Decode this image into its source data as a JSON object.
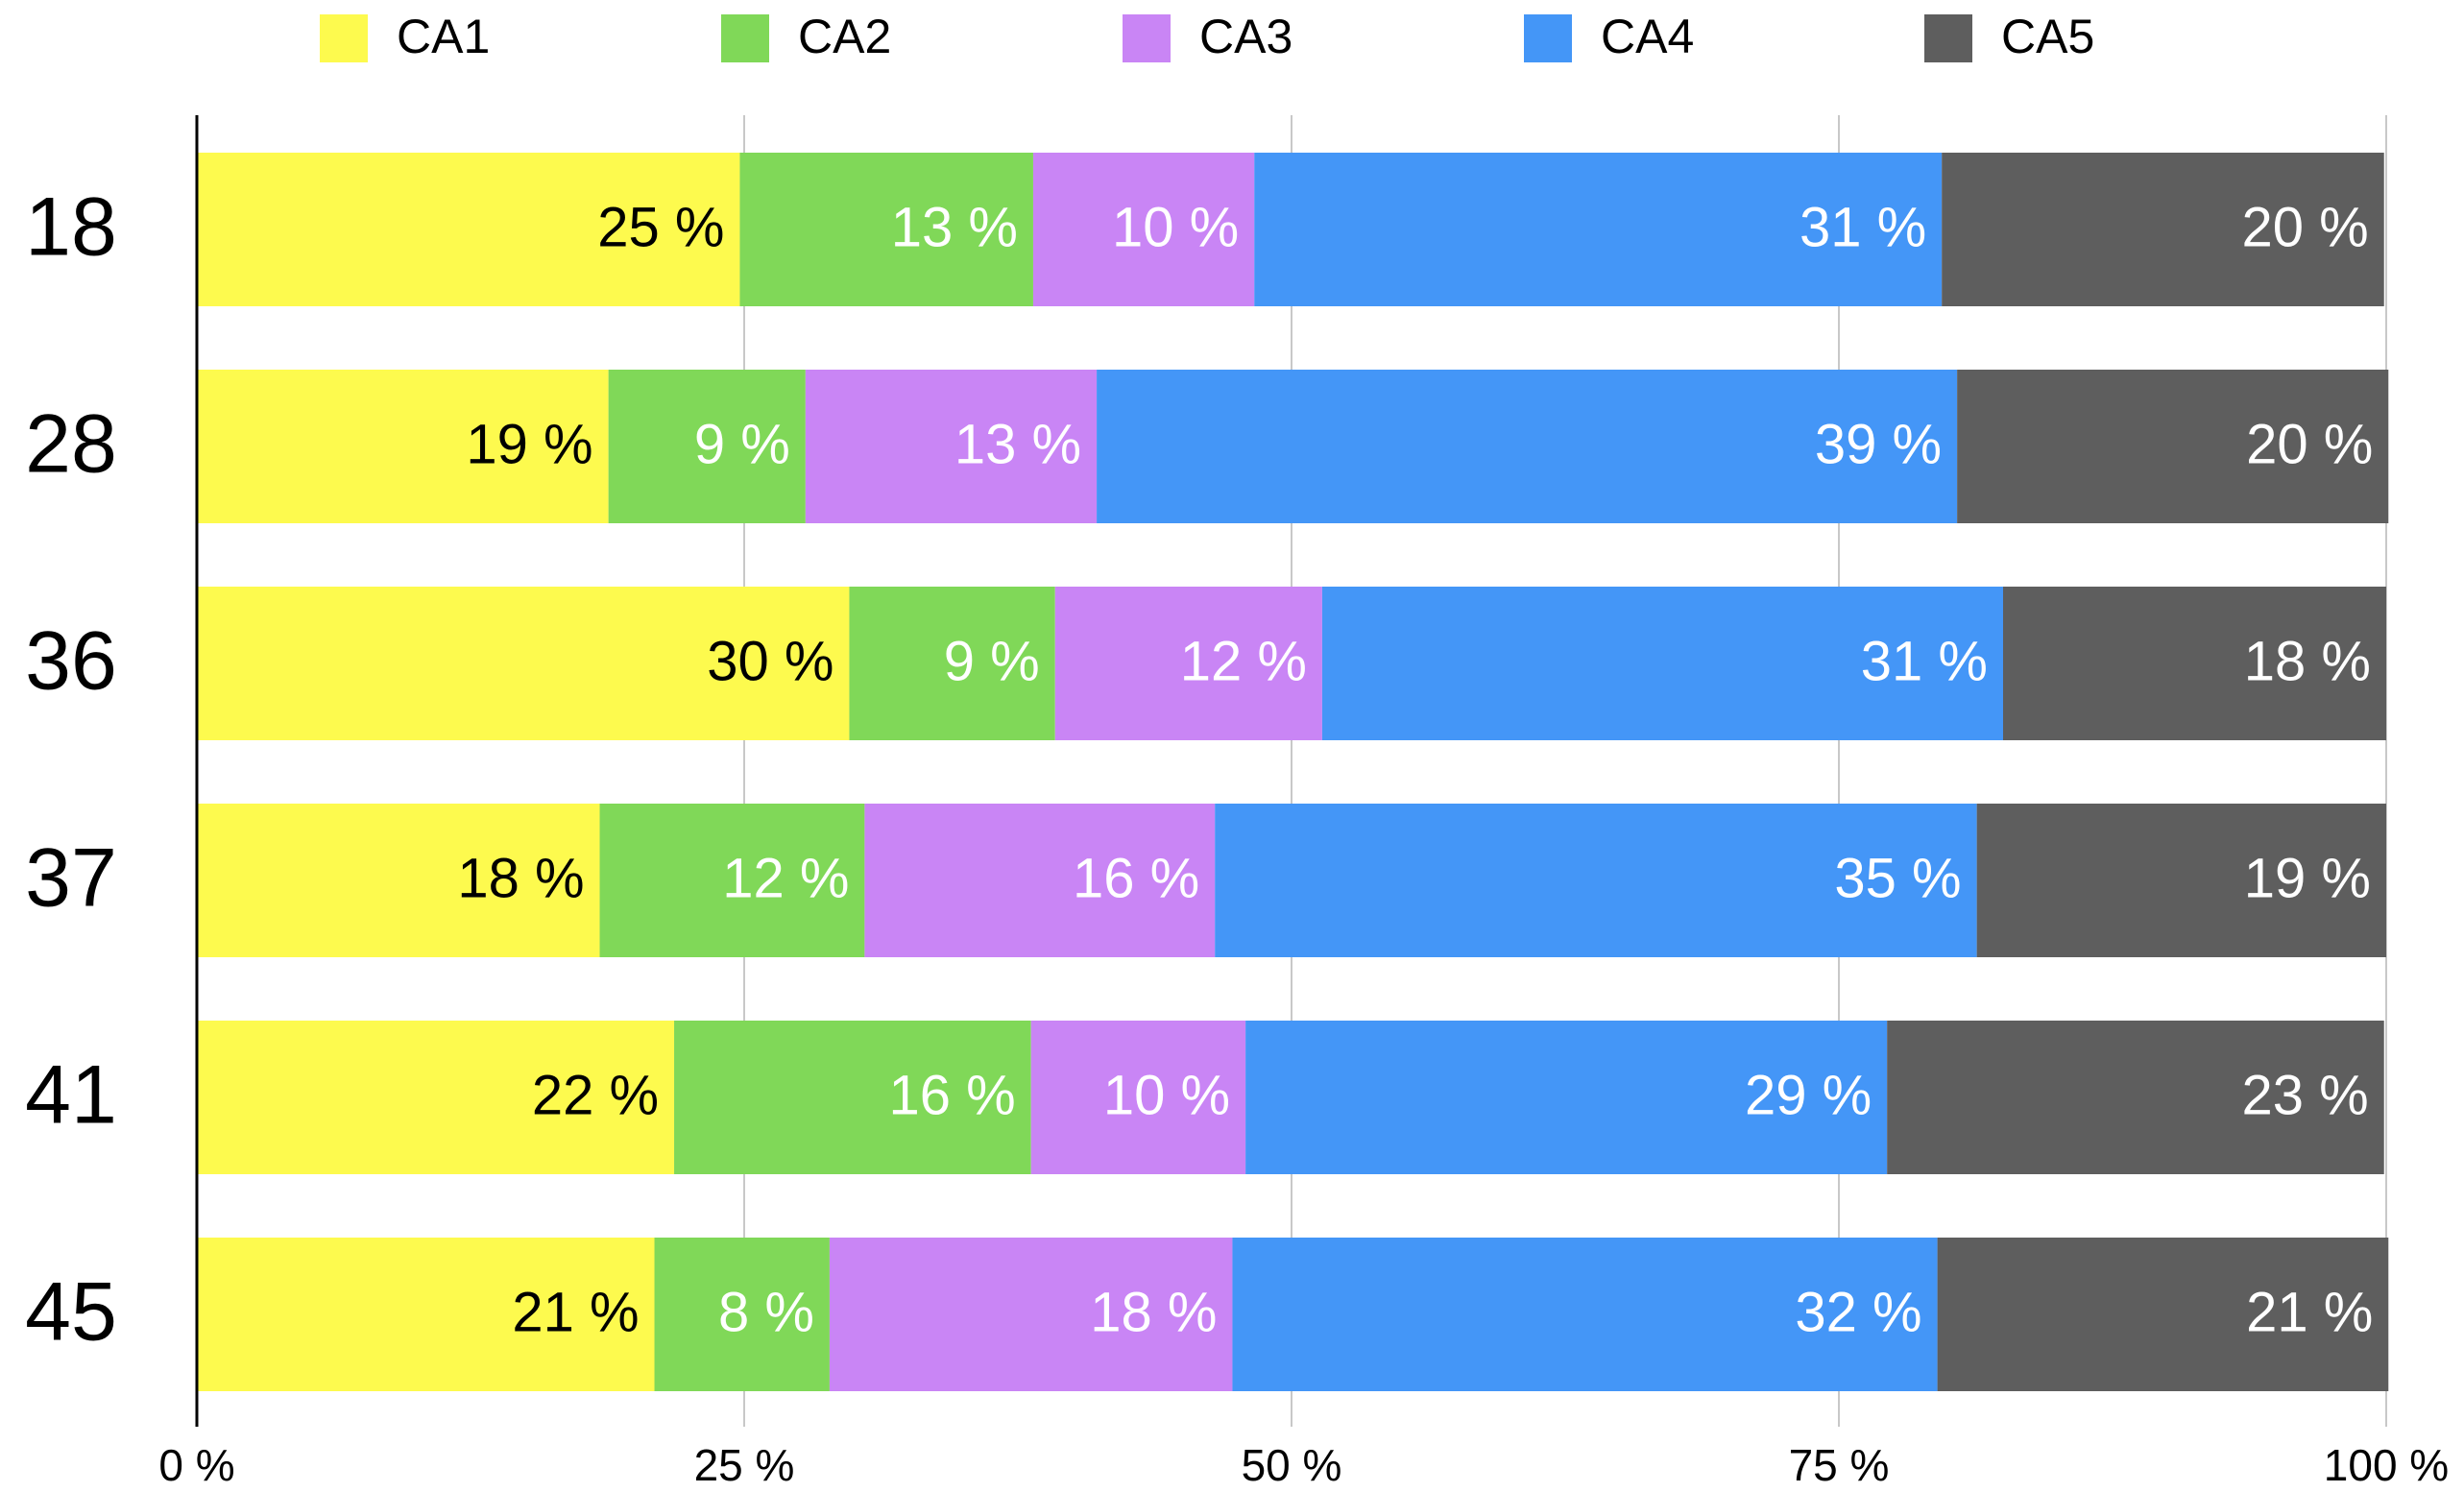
{
  "chart_data": {
    "type": "stacked_barh",
    "categories": [
      "18",
      "28",
      "36",
      "37",
      "41",
      "45"
    ],
    "series": [
      {
        "name": "CA1",
        "color": "#fdfa4e",
        "values": [
          24.8,
          18.8,
          29.8,
          18.4,
          21.8,
          20.9
        ],
        "value_labels": [
          "25 %",
          "19 %",
          "30 %",
          "18 %",
          "22 %",
          "21 %"
        ]
      },
      {
        "name": "CA2",
        "color": "#80d858",
        "values": [
          13.4,
          9.0,
          9.4,
          12.1,
          16.3,
          8.0
        ],
        "value_labels": [
          "13 %",
          "9 %",
          "9 %",
          "12 %",
          "16 %",
          "8 %"
        ]
      },
      {
        "name": "CA3",
        "color": "#c985f5",
        "values": [
          10.1,
          13.3,
          12.2,
          16.0,
          9.8,
          18.4
        ],
        "value_labels": [
          "10 %",
          "13 %",
          "12 %",
          "16 %",
          "10 %",
          "18 %"
        ]
      },
      {
        "name": "CA4",
        "color": "#4496f7",
        "values": [
          31.4,
          39.3,
          31.1,
          34.8,
          29.3,
          32.2
        ],
        "value_labels": [
          "31 %",
          "39 %",
          "31 %",
          "35 %",
          "29 %",
          "32 %"
        ]
      },
      {
        "name": "CA5",
        "color": "#5e5e5e",
        "values": [
          20.2,
          19.7,
          17.5,
          18.7,
          22.7,
          20.6
        ],
        "value_labels": [
          "20 %",
          "20 %",
          "18 %",
          "19 %",
          "23 %",
          "21 %"
        ]
      }
    ],
    "xlim": [
      0,
      100
    ],
    "xticks": [
      {
        "value": 0,
        "label": "0 %"
      },
      {
        "value": 25,
        "label": "25 %"
      },
      {
        "value": 50,
        "label": "50 %"
      },
      {
        "value": 75,
        "label": "75 %"
      },
      {
        "value": 100,
        "label": "100 %"
      }
    ],
    "grid": true,
    "legend": "top"
  }
}
